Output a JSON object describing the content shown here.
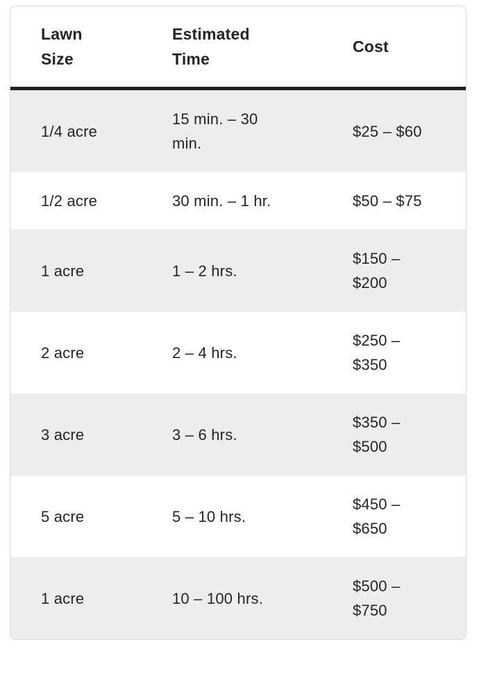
{
  "chart_data": {
    "type": "table",
    "columns": [
      "Lawn Size",
      "Estimated Time",
      "Cost"
    ],
    "rows": [
      [
        "1/4 acre",
        "15 min. – 30 min.",
        "$25 – $60"
      ],
      [
        "1/2 acre",
        "30 min. – 1 hr.",
        "$50 – $75"
      ],
      [
        "1 acre",
        "1 – 2 hrs.",
        "$150 – $200"
      ],
      [
        "2 acre",
        "2 – 4 hrs.",
        "$250 – $350"
      ],
      [
        "3 acre",
        "3 – 6 hrs.",
        "$350 – $500"
      ],
      [
        "5 acre",
        "5 – 10 hrs.",
        "$450 – $650"
      ],
      [
        "1 acre",
        "10 – 100 hrs.",
        "$500 – $750"
      ]
    ],
    "title": "",
    "layout_hints": {
      "striped": true,
      "stripe_starts_on_first_data_row": true,
      "header_divider": "thick dark line"
    }
  },
  "table": {
    "headers": {
      "lawn_size": "Lawn\nSize",
      "estimated_time": "Estimated\nTime",
      "cost": "Cost"
    },
    "rows": [
      {
        "lawn_size": "1/4 acre",
        "estimated_time": "15 min. – 30\nmin.",
        "cost": "$25 – $60"
      },
      {
        "lawn_size": "1/2 acre",
        "estimated_time": "30 min. – 1 hr.",
        "cost": "$50 – $75"
      },
      {
        "lawn_size": "1 acre",
        "estimated_time": "1 – 2 hrs.",
        "cost": "$150 –\n$200"
      },
      {
        "lawn_size": "2 acre",
        "estimated_time": "2 – 4 hrs.",
        "cost": "$250 –\n$350"
      },
      {
        "lawn_size": "3 acre",
        "estimated_time": "3 – 6 hrs.",
        "cost": "$350 –\n$500"
      },
      {
        "lawn_size": "5 acre",
        "estimated_time": "5 – 10 hrs.",
        "cost": "$450 –\n$650"
      },
      {
        "lawn_size": "1 acre",
        "estimated_time": "10 – 100 hrs.",
        "cost": "$500 –\n$750"
      }
    ]
  },
  "colors": {
    "row_alt_bg": "#ededee",
    "row_plain_bg": "#ffffff",
    "header_divider": "#1e2022",
    "card_border": "#d9d9db",
    "text": "#222426"
  }
}
